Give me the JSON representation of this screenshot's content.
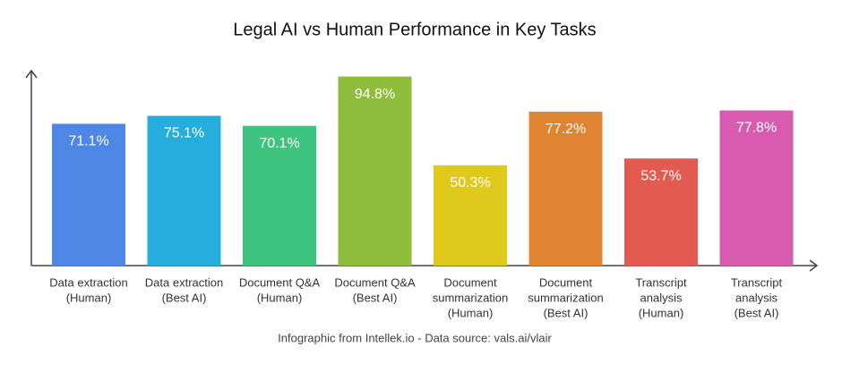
{
  "chart_data": {
    "type": "bar",
    "title": "Legal AI vs Human Performance in Key Tasks",
    "categories": [
      [
        "Data extraction",
        "(Human)"
      ],
      [
        "Data extraction",
        "(Best AI)"
      ],
      [
        "Document Q&A",
        "(Human)"
      ],
      [
        "Document Q&A",
        "(Best AI)"
      ],
      [
        "Document",
        "summarization",
        "(Human)"
      ],
      [
        "Document",
        "summarization",
        "(Best AI)"
      ],
      [
        "Transcript",
        "analysis",
        "(Human)"
      ],
      [
        "Transcript",
        "analysis",
        "(Best AI)"
      ]
    ],
    "values": [
      71.1,
      75.1,
      70.1,
      94.8,
      50.3,
      77.2,
      53.7,
      77.8
    ],
    "value_labels": [
      "71.1%",
      "75.1%",
      "70.1%",
      "94.8%",
      "50.3%",
      "77.2%",
      "53.7%",
      "77.8%"
    ],
    "colors": [
      "#4f87e7",
      "#25aedd",
      "#3fc47f",
      "#8dbd3b",
      "#e0c91d",
      "#e08431",
      "#e35a50",
      "#d95bb0"
    ],
    "ylim": [
      0,
      100
    ],
    "source": "Infographic from Intellek.io - Data source: vals.ai/vlair"
  }
}
